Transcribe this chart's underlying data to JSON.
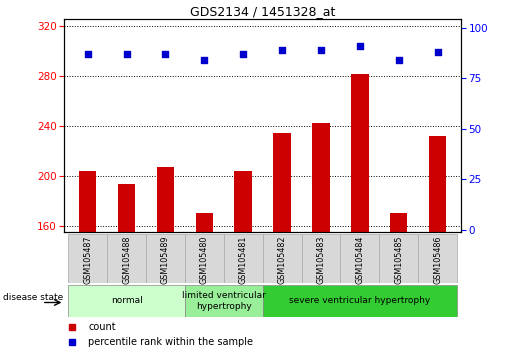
{
  "title": "GDS2134 / 1451328_at",
  "samples": [
    "GSM105487",
    "GSM105488",
    "GSM105489",
    "GSM105480",
    "GSM105481",
    "GSM105482",
    "GSM105483",
    "GSM105484",
    "GSM105485",
    "GSM105486"
  ],
  "bar_values": [
    204,
    193,
    207,
    170,
    204,
    234,
    242,
    281,
    170,
    232
  ],
  "percentile_values": [
    87,
    87,
    87,
    84,
    87,
    89,
    89,
    91,
    84,
    88
  ],
  "ylim_left": [
    155,
    325
  ],
  "ylim_right": [
    -1,
    104
  ],
  "yticks_left": [
    160,
    200,
    240,
    280,
    320
  ],
  "yticks_right": [
    0,
    25,
    50,
    75,
    100
  ],
  "bar_color": "#cc0000",
  "scatter_color": "#0000cc",
  "disease_groups": [
    {
      "label": "normal",
      "start": 0,
      "end": 3,
      "color": "#ccffcc"
    },
    {
      "label": "limited ventricular\nhypertrophy",
      "start": 3,
      "end": 5,
      "color": "#99ee99"
    },
    {
      "label": "severe ventricular hypertrophy",
      "start": 5,
      "end": 10,
      "color": "#33cc33"
    }
  ],
  "disease_state_label": "disease state",
  "legend_count_label": "count",
  "legend_percentile_label": "percentile rank within the sample",
  "tick_label_bg": "#d8d8d8",
  "bar_width": 0.45
}
